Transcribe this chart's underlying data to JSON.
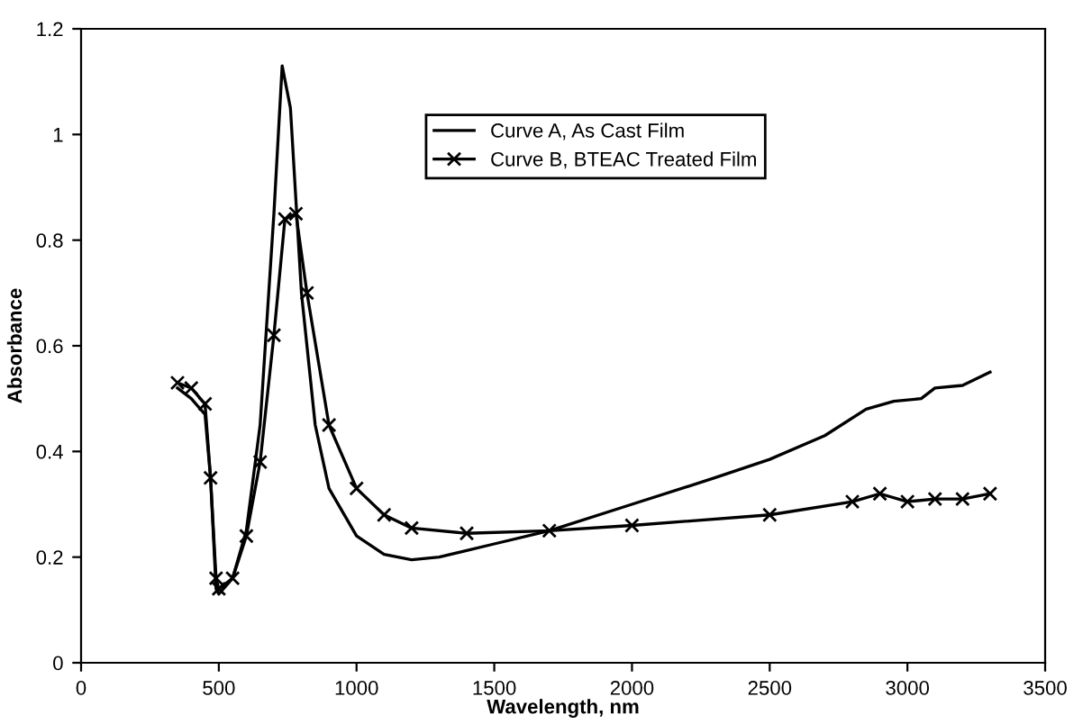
{
  "chart_data": {
    "type": "line",
    "xlabel": "Wavelength, nm",
    "ylabel": "Absorbance",
    "xlim": [
      0,
      3500
    ],
    "xticks": [
      0,
      500,
      1000,
      1500,
      2000,
      2500,
      3000,
      3500
    ],
    "ylim": [
      0,
      1.2
    ],
    "yticks": [
      0,
      0.2,
      0.4,
      0.6,
      0.8,
      1,
      1.2
    ],
    "grid": false,
    "legend": "top right",
    "series": [
      {
        "name": "Curve A, As Cast Film",
        "color": "#000000",
        "marker": "none",
        "x": [
          350,
          400,
          450,
          470,
          490,
          500,
          550,
          600,
          650,
          700,
          730,
          760,
          800,
          850,
          900,
          1000,
          1100,
          1200,
          1300,
          1500,
          1700,
          2000,
          2300,
          2500,
          2700,
          2850,
          2950,
          3050,
          3100,
          3200,
          3300
        ],
        "values": [
          0.52,
          0.5,
          0.47,
          0.35,
          0.14,
          0.13,
          0.16,
          0.25,
          0.45,
          0.85,
          1.13,
          1.05,
          0.7,
          0.45,
          0.33,
          0.24,
          0.205,
          0.195,
          0.2,
          0.225,
          0.25,
          0.3,
          0.35,
          0.385,
          0.43,
          0.48,
          0.495,
          0.5,
          0.52,
          0.525,
          0.55
        ]
      },
      {
        "name": "Curve B, BTEAC Treated Film",
        "color": "#000000",
        "marker": "cross",
        "x": [
          350,
          400,
          450,
          470,
          490,
          500,
          550,
          600,
          650,
          700,
          740,
          780,
          820,
          900,
          1000,
          1100,
          1200,
          1400,
          1700,
          2000,
          2500,
          2800,
          2900,
          3000,
          3100,
          3200,
          3300
        ],
        "values": [
          0.53,
          0.52,
          0.49,
          0.35,
          0.16,
          0.14,
          0.16,
          0.24,
          0.38,
          0.62,
          0.84,
          0.85,
          0.7,
          0.45,
          0.33,
          0.28,
          0.255,
          0.245,
          0.25,
          0.26,
          0.28,
          0.305,
          0.32,
          0.305,
          0.31,
          0.31,
          0.32
        ]
      }
    ]
  }
}
